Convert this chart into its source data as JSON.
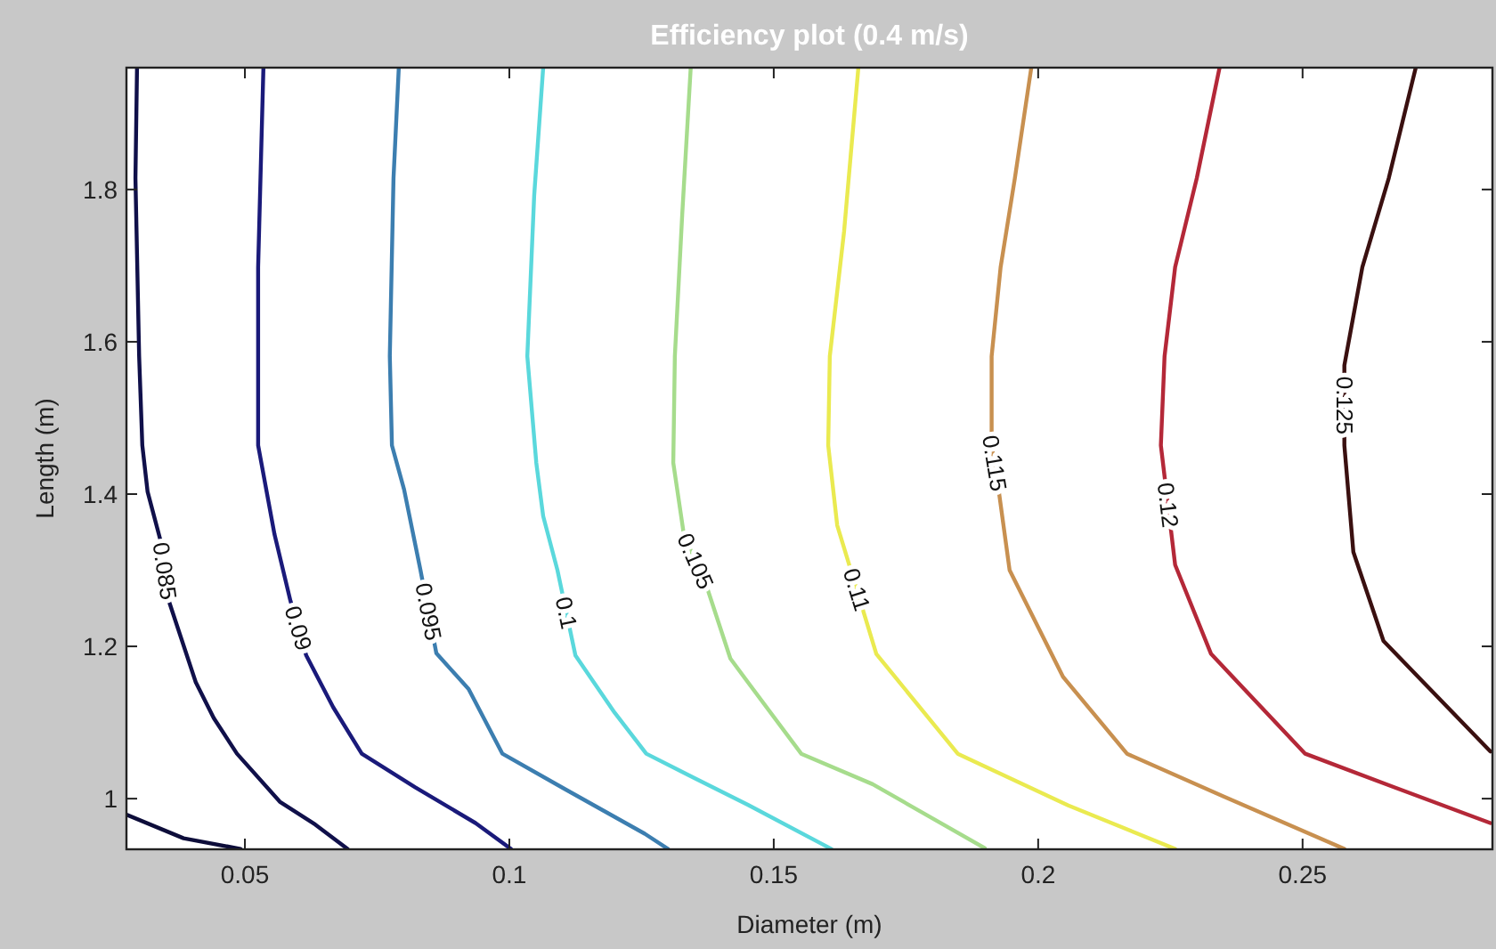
{
  "chart_data": {
    "type": "line",
    "title": "Efficiency plot (0.4 m/s)",
    "xlabel": "Diameter (m)",
    "ylabel": "Length (m)",
    "xlim": [
      0.0276,
      0.2859
    ],
    "ylim": [
      0.9335,
      1.96
    ],
    "xticks": [
      0.05,
      0.1,
      0.15,
      0.2,
      0.25
    ],
    "yticks": [
      1,
      1.2,
      1.4,
      1.6,
      1.8
    ],
    "grid": false,
    "legend": false,
    "marker": "none",
    "line_style": "solid",
    "series": [
      {
        "color": "#0d0d3a",
        "x": [
          0.0276,
          0.0384,
          0.0492
        ],
        "values": [
          0.979,
          0.948,
          0.934
        ]
      },
      {
        "name": "0.085",
        "color": "#10104a",
        "x": [
          0.0296,
          0.0293,
          0.03,
          0.0306,
          0.0316,
          0.034,
          0.0357,
          0.0407,
          0.0441,
          0.0485,
          0.0566,
          0.0633,
          0.0694
        ],
        "values": [
          1.96,
          1.815,
          1.581,
          1.464,
          1.403,
          1.34,
          1.258,
          1.153,
          1.106,
          1.059,
          0.996,
          0.966,
          0.934
        ]
      },
      {
        "name": "0.09",
        "color": "#1a1a7a",
        "x": [
          0.0535,
          0.0525,
          0.0525,
          0.0556,
          0.0586,
          0.0616,
          0.0667,
          0.0721,
          0.0822,
          0.0936,
          0.1003
        ],
        "values": [
          1.96,
          1.698,
          1.464,
          1.347,
          1.26,
          1.188,
          1.12,
          1.059,
          1.015,
          0.968,
          0.934
        ]
      },
      {
        "name": "0.095",
        "color": "#3c7eb0",
        "x": [
          0.0791,
          0.0781,
          0.0774,
          0.0778,
          0.0801,
          0.0832,
          0.0862,
          0.0923,
          0.0987,
          0.1104,
          0.1256,
          0.13
        ],
        "values": [
          1.96,
          1.815,
          1.581,
          1.464,
          1.406,
          1.3,
          1.191,
          1.144,
          1.059,
          1.013,
          0.954,
          0.934
        ]
      },
      {
        "name": "0.1",
        "color": "#5ad8dc",
        "x": [
          0.1064,
          0.1047,
          0.1034,
          0.1051,
          0.1064,
          0.1091,
          0.1125,
          0.1199,
          0.1259,
          0.135,
          0.1451,
          0.1609
        ],
        "values": [
          1.96,
          1.792,
          1.581,
          1.441,
          1.371,
          1.3,
          1.188,
          1.113,
          1.059,
          1.027,
          0.992,
          0.934
        ]
      },
      {
        "name": "0.105",
        "color": "#a6dc8c",
        "x": [
          0.1343,
          0.1327,
          0.1313,
          0.131,
          0.133,
          0.1374,
          0.1418,
          0.1451,
          0.1552,
          0.1687,
          0.1899
        ],
        "values": [
          1.96,
          1.768,
          1.581,
          1.441,
          1.347,
          1.277,
          1.184,
          1.153,
          1.059,
          1.019,
          0.935
        ]
      },
      {
        "name": "0.11",
        "color": "#eaea50",
        "x": [
          0.166,
          0.1633,
          0.1606,
          0.1603,
          0.162,
          0.1694,
          0.1848,
          0.2057,
          0.2259
        ],
        "values": [
          1.96,
          1.745,
          1.581,
          1.464,
          1.359,
          1.19,
          1.059,
          0.991,
          0.934
        ]
      },
      {
        "name": "0.115",
        "color": "#c89050",
        "x": [
          0.1987,
          0.1956,
          0.1929,
          0.1912,
          0.1912,
          0.1923,
          0.1946,
          0.2047,
          0.2168,
          0.235,
          0.2579
        ],
        "values": [
          1.96,
          1.815,
          1.698,
          1.581,
          1.464,
          1.417,
          1.3,
          1.16,
          1.059,
          1.003,
          0.934
        ]
      },
      {
        "name": "0.12",
        "color": "#b42838",
        "x": [
          0.2343,
          0.23,
          0.2259,
          0.2239,
          0.2232,
          0.2259,
          0.2327,
          0.2505,
          0.2673,
          0.2855
        ],
        "values": [
          1.96,
          1.815,
          1.698,
          1.581,
          1.464,
          1.307,
          1.19,
          1.059,
          1.015,
          0.968
        ]
      },
      {
        "name": "0.125",
        "color": "#3a1010",
        "x": [
          0.2714,
          0.2663,
          0.2613,
          0.2579,
          0.2579,
          0.2596,
          0.2653,
          0.2855
        ],
        "values": [
          1.96,
          1.815,
          1.698,
          1.569,
          1.464,
          1.324,
          1.207,
          1.062
        ]
      }
    ]
  }
}
